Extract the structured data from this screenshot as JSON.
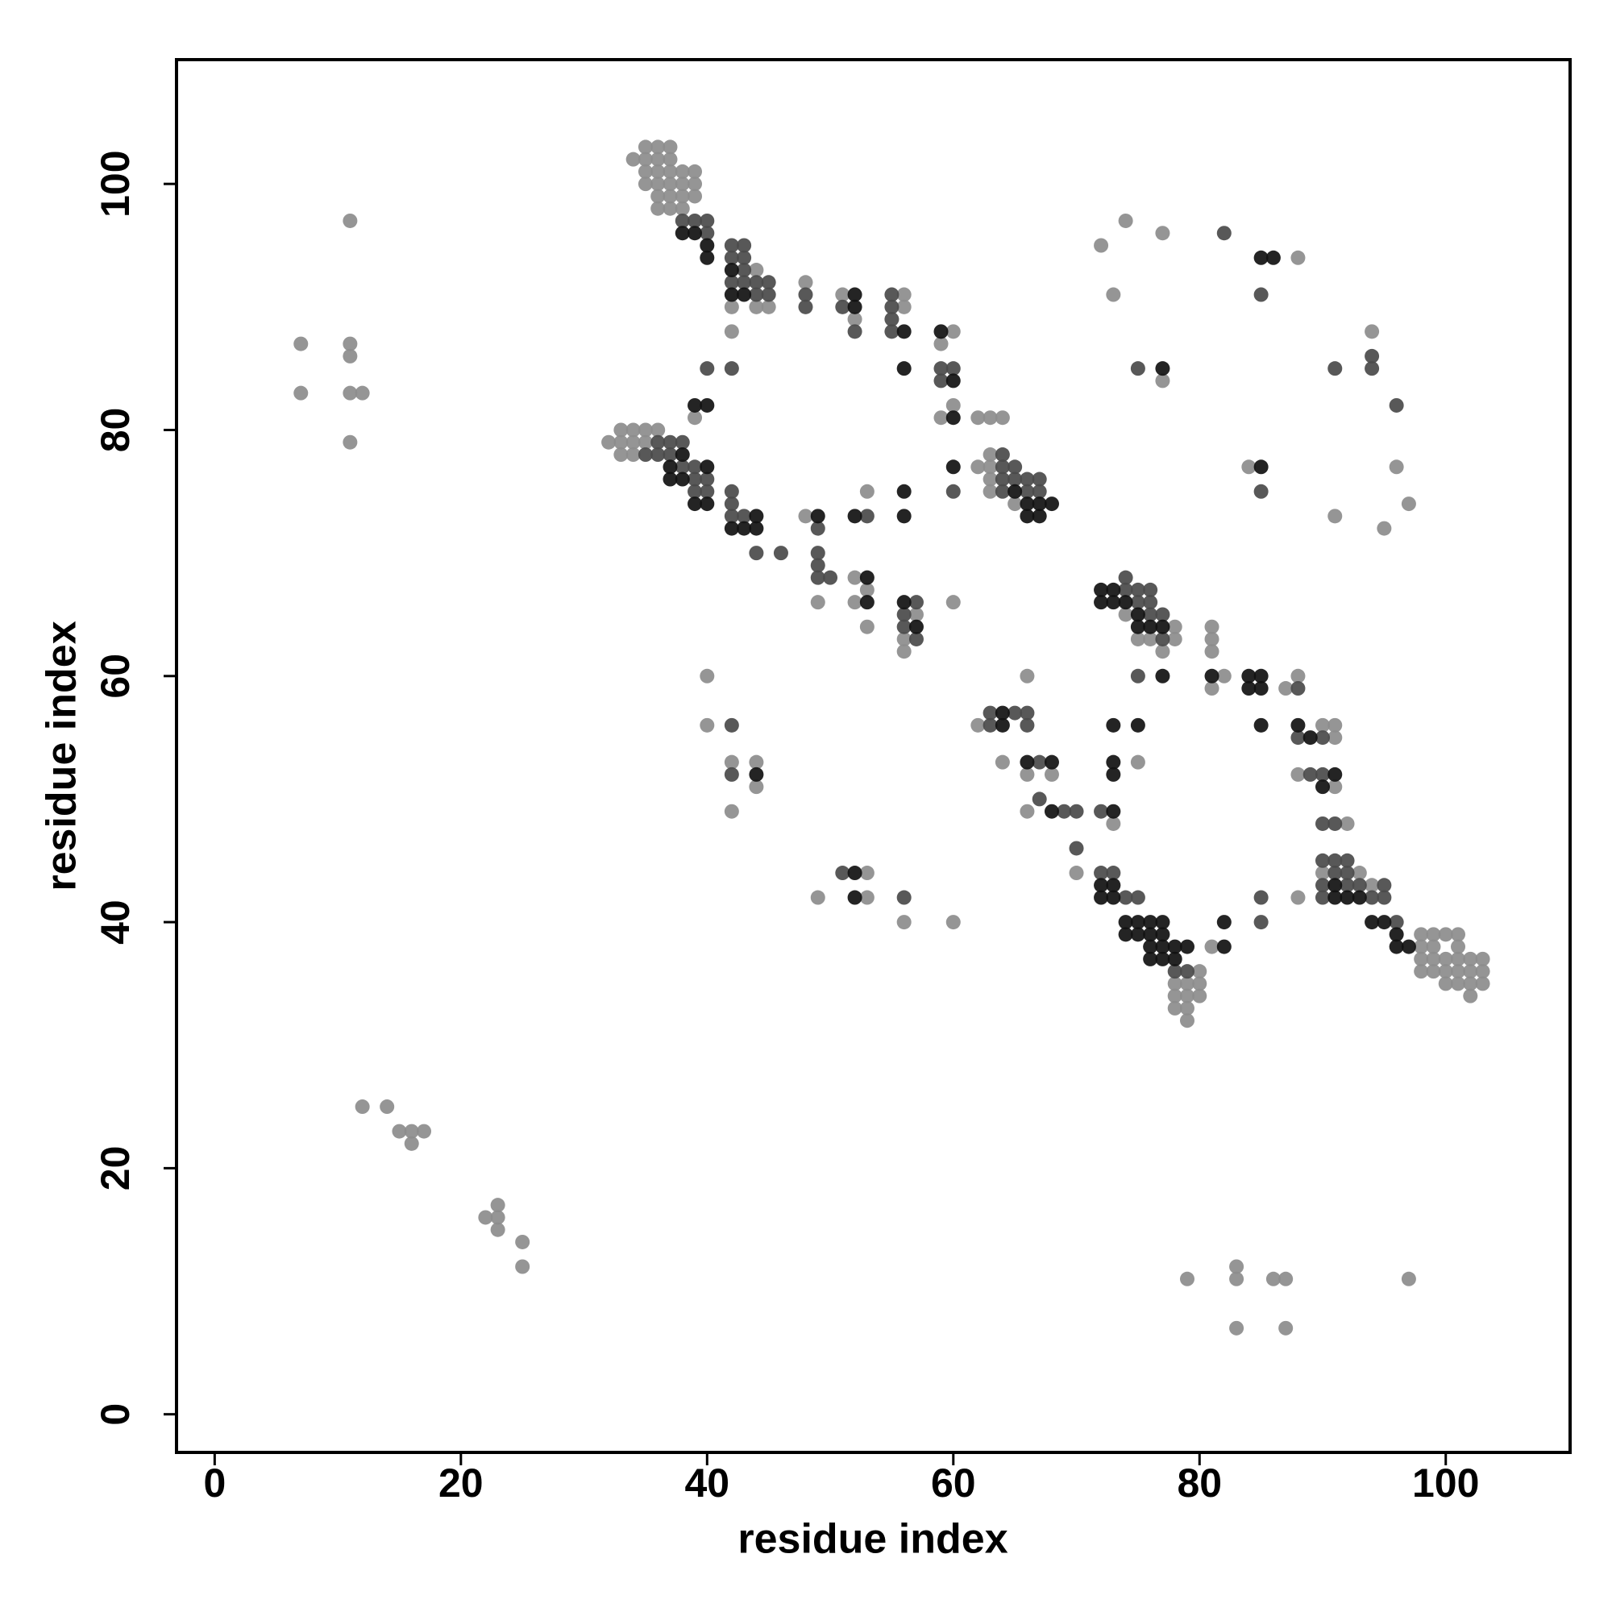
{
  "chart_data": {
    "type": "scatter",
    "x_label": "residue index",
    "y_label": "residue index",
    "xlim": [
      -3.1,
      110.1
    ],
    "ylim": [
      -3.1,
      110.1
    ],
    "xticks": [
      0,
      20,
      40,
      60,
      80,
      100
    ],
    "yticks": [
      0,
      20,
      40,
      60,
      80,
      100
    ],
    "series": [
      {
        "color": "#8c8c8c",
        "x": [
          11,
          7,
          11,
          11,
          7,
          11,
          12,
          11,
          12,
          14,
          15,
          16,
          17,
          16,
          22,
          23,
          23,
          23,
          25,
          25,
          79,
          83,
          83,
          83,
          86,
          87,
          87,
          97,
          34,
          35,
          36,
          37,
          35,
          36,
          37,
          35,
          36,
          37,
          38,
          39,
          35,
          36,
          37,
          38,
          39,
          36,
          37,
          38,
          39,
          36,
          37,
          38,
          44,
          44,
          56,
          56,
          48,
          51,
          52,
          42,
          42,
          45,
          59,
          60,
          60,
          59,
          62,
          63,
          64,
          39,
          32,
          33,
          34,
          35,
          33,
          34,
          35,
          36,
          33,
          34,
          48,
          49,
          52,
          53,
          52,
          53,
          53,
          57,
          56,
          56,
          60,
          62,
          63,
          63,
          63,
          63,
          65,
          74,
          75,
          76,
          77,
          78,
          78,
          81,
          81,
          81,
          82,
          81,
          88,
          87,
          90,
          91,
          91,
          88,
          91,
          92,
          90,
          93,
          94,
          98,
          99,
          100,
          101,
          98,
          99,
          98,
          99,
          100,
          101,
          102,
          103,
          98,
          99,
          100,
          101,
          102,
          103,
          100,
          101,
          102,
          103,
          102,
          101,
          62,
          64,
          66,
          68,
          66,
          70,
          73,
          75,
          78,
          79,
          80,
          78,
          79,
          80,
          78,
          79,
          79,
          80,
          81,
          88,
          40,
          40,
          42,
          44,
          42,
          44,
          49,
          53,
          53,
          56,
          60,
          72,
          74,
          77,
          88,
          73,
          77,
          94,
          84,
          96,
          97,
          91,
          95,
          66
        ],
        "values": [
          97,
          87,
          87,
          86,
          83,
          83,
          83,
          79,
          25,
          25,
          23,
          23,
          23,
          22,
          16,
          17,
          16,
          15,
          14,
          12,
          11,
          12,
          11,
          7,
          11,
          11,
          7,
          11,
          102,
          103,
          103,
          103,
          102,
          102,
          102,
          101,
          101,
          101,
          101,
          101,
          100,
          100,
          100,
          100,
          100,
          99,
          99,
          99,
          99,
          98,
          98,
          98,
          93,
          90,
          91,
          90,
          92,
          91,
          89,
          90,
          88,
          90,
          87,
          88,
          82,
          81,
          81,
          81,
          81,
          81,
          79,
          79,
          79,
          79,
          80,
          80,
          80,
          80,
          78,
          78,
          73,
          66,
          68,
          67,
          66,
          64,
          75,
          65,
          63,
          62,
          66,
          77,
          78,
          77,
          76,
          75,
          74,
          65,
          63,
          63,
          62,
          63,
          64,
          64,
          63,
          62,
          60,
          59,
          60,
          59,
          56,
          56,
          55,
          52,
          51,
          48,
          44,
          44,
          43,
          39,
          39,
          39,
          39,
          38,
          38,
          37,
          37,
          37,
          37,
          37,
          37,
          36,
          36,
          36,
          36,
          36,
          36,
          35,
          35,
          35,
          35,
          34,
          38,
          56,
          53,
          52,
          52,
          49,
          44,
          48,
          53,
          35,
          35,
          35,
          34,
          34,
          34,
          33,
          33,
          32,
          36,
          38,
          42,
          60,
          56,
          53,
          53,
          49,
          51,
          42,
          44,
          42,
          40,
          40,
          95,
          97,
          96,
          94,
          91,
          84,
          88,
          77,
          77,
          74,
          73,
          72,
          60
        ]
      },
      {
        "color": "#4a4a4a",
        "x": [
          38,
          39,
          40,
          40,
          42,
          43,
          42,
          43,
          43,
          42,
          43,
          44,
          45,
          44,
          45,
          48,
          48,
          51,
          52,
          55,
          55,
          55,
          55,
          42,
          59,
          60,
          59,
          40,
          35,
          36,
          37,
          38,
          36,
          37,
          38,
          39,
          39,
          40,
          39,
          40,
          42,
          42,
          42,
          43,
          44,
          46,
          49,
          49,
          49,
          49,
          50,
          53,
          56,
          57,
          56,
          57,
          60,
          64,
          64,
          65,
          64,
          65,
          66,
          67,
          64,
          66,
          67,
          74,
          74,
          75,
          76,
          75,
          76,
          76,
          77,
          77,
          75,
          88,
          88,
          90,
          89,
          90,
          90,
          91,
          90,
          91,
          92,
          91,
          92,
          92,
          93,
          95,
          90,
          90,
          94,
          95,
          96,
          63,
          65,
          66,
          63,
          66,
          67,
          67,
          69,
          70,
          70,
          72,
          72,
          73,
          74,
          75,
          78,
          79,
          85,
          85,
          42,
          42,
          51,
          56,
          82,
          85,
          75,
          91,
          94,
          94,
          96,
          85
        ],
        "values": [
          97,
          97,
          97,
          96,
          95,
          95,
          94,
          94,
          93,
          92,
          92,
          92,
          92,
          91,
          91,
          91,
          90,
          90,
          88,
          91,
          90,
          89,
          88,
          85,
          85,
          85,
          84,
          85,
          78,
          79,
          79,
          79,
          78,
          78,
          77,
          77,
          76,
          76,
          75,
          75,
          75,
          74,
          73,
          73,
          70,
          70,
          72,
          70,
          69,
          68,
          68,
          73,
          65,
          66,
          64,
          63,
          75,
          78,
          77,
          77,
          76,
          76,
          76,
          76,
          75,
          75,
          75,
          68,
          67,
          67,
          67,
          66,
          66,
          65,
          65,
          63,
          60,
          59,
          55,
          55,
          52,
          52,
          48,
          48,
          45,
          45,
          45,
          44,
          44,
          43,
          43,
          43,
          43,
          42,
          42,
          42,
          40,
          57,
          57,
          57,
          56,
          56,
          53,
          50,
          49,
          49,
          46,
          49,
          44,
          44,
          42,
          42,
          36,
          36,
          42,
          40,
          56,
          52,
          44,
          42,
          96,
          91,
          85,
          85,
          86,
          85,
          82,
          75
        ]
      },
      {
        "color": "#111111",
        "x": [
          38,
          39,
          40,
          40,
          42,
          42,
          43,
          52,
          52,
          56,
          56,
          59,
          60,
          60,
          39,
          40,
          38,
          37,
          37,
          38,
          39,
          40,
          40,
          42,
          43,
          44,
          44,
          49,
          52,
          53,
          53,
          56,
          56,
          56,
          57,
          60,
          65,
          66,
          66,
          67,
          67,
          68,
          72,
          73,
          72,
          73,
          74,
          75,
          75,
          76,
          77,
          77,
          81,
          84,
          85,
          84,
          85,
          85,
          88,
          89,
          91,
          90,
          91,
          91,
          92,
          93,
          94,
          95,
          96,
          96,
          97,
          64,
          64,
          66,
          68,
          68,
          73,
          75,
          73,
          73,
          73,
          72,
          73,
          72,
          73,
          74,
          75,
          76,
          77,
          74,
          75,
          76,
          77,
          76,
          77,
          78,
          79,
          76,
          77,
          78,
          82,
          82,
          44,
          52,
          52,
          85,
          86,
          77,
          85
        ],
        "values": [
          96,
          96,
          94,
          95,
          93,
          91,
          91,
          91,
          90,
          88,
          85,
          88,
          84,
          81,
          82,
          82,
          78,
          77,
          76,
          76,
          74,
          74,
          77,
          72,
          72,
          73,
          72,
          73,
          73,
          68,
          66,
          75,
          73,
          66,
          64,
          77,
          75,
          74,
          73,
          73,
          74,
          74,
          67,
          67,
          66,
          66,
          66,
          65,
          64,
          64,
          64,
          60,
          60,
          60,
          60,
          59,
          59,
          56,
          56,
          55,
          52,
          51,
          43,
          42,
          42,
          42,
          40,
          40,
          39,
          38,
          38,
          57,
          56,
          53,
          53,
          49,
          56,
          56,
          53,
          52,
          49,
          43,
          43,
          42,
          42,
          40,
          40,
          40,
          40,
          39,
          39,
          39,
          39,
          38,
          38,
          38,
          38,
          37,
          37,
          37,
          40,
          38,
          52,
          44,
          42,
          94,
          94,
          85,
          77
        ]
      }
    ]
  }
}
